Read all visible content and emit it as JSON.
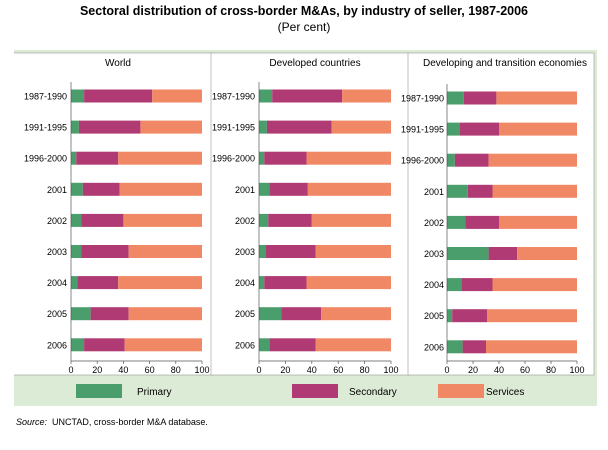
{
  "title": "Sectoral distribution of cross-border M&As, by industry of seller, 1987-2006",
  "subtitle": "(Per cent)",
  "source_label": "Source:",
  "source_text": "UNCTAD, cross-border M&A database.",
  "chart_data": {
    "type": "bar",
    "orientation": "horizontal",
    "stacked": true,
    "categories": [
      "1987-1990",
      "1991-1995",
      "1996-2000",
      "2001",
      "2002",
      "2003",
      "2004",
      "2005",
      "2006"
    ],
    "xlim": [
      0,
      100
    ],
    "xticks": [
      0,
      20,
      40,
      60,
      80,
      100
    ],
    "legend": {
      "position": "bottom",
      "entries": [
        "Primary",
        "Secondary",
        "Services"
      ]
    },
    "colors": {
      "Primary": "#4a9e6b",
      "Secondary": "#b03a73",
      "Services": "#f08866"
    },
    "panels": [
      {
        "title": "World",
        "series": [
          {
            "name": "Primary",
            "values": [
              10,
              6,
              4,
              9,
              8,
              8,
              5,
              15,
              10
            ]
          },
          {
            "name": "Secondary",
            "values": [
              52,
              47,
              32,
              28,
              32,
              36,
              31,
              29,
              31
            ]
          },
          {
            "name": "Services",
            "values": [
              38,
              47,
              64,
              63,
              60,
              56,
              64,
              56,
              59
            ]
          }
        ]
      },
      {
        "title": "Developed countries",
        "series": [
          {
            "name": "Primary",
            "values": [
              10,
              6,
              4,
              8,
              7,
              5,
              4,
              17,
              8
            ]
          },
          {
            "name": "Secondary",
            "values": [
              53,
              49,
              32,
              29,
              33,
              38,
              32,
              30,
              35
            ]
          },
          {
            "name": "Services",
            "values": [
              37,
              45,
              64,
              63,
              60,
              57,
              64,
              53,
              57
            ]
          }
        ]
      },
      {
        "title": "Developing and transition economies",
        "series": [
          {
            "name": "Primary",
            "values": [
              13,
              10,
              6,
              16,
              14,
              32,
              11,
              4,
              12
            ]
          },
          {
            "name": "Secondary",
            "values": [
              25,
              30,
              26,
              19,
              26,
              22,
              24,
              27,
              18
            ]
          },
          {
            "name": "Services",
            "values": [
              62,
              60,
              68,
              65,
              60,
              46,
              65,
              69,
              70
            ]
          }
        ]
      }
    ]
  }
}
